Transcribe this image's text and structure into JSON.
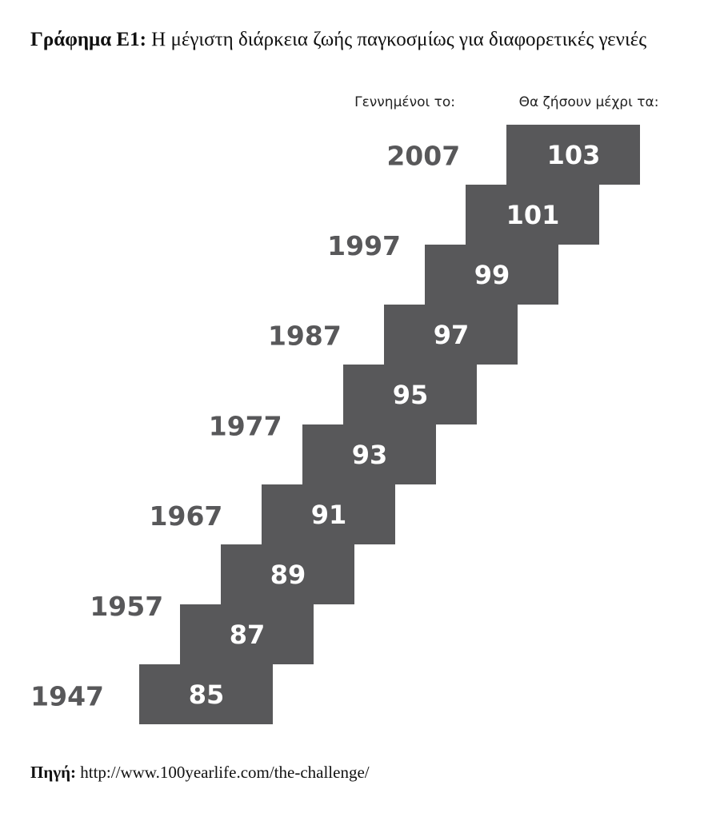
{
  "title": {
    "label": "Γράφημα Ε1:",
    "text": "Η μέγιστη διάρκεια ζωής παγκοσμίως για διαφορετικές γενιές"
  },
  "headers": {
    "born": "Γεννημένοι το:",
    "lives_until": "Θα ζήσουν μέχρι τα:"
  },
  "ages": [
    85,
    87,
    89,
    91,
    93,
    95,
    97,
    99,
    101,
    103
  ],
  "years": [
    "1947",
    "1957",
    "1967",
    "1977",
    "1987",
    "1997",
    "2007"
  ],
  "source": {
    "label": "Πηγή:",
    "url": "http://www.100yearlife.com/the-challenge/"
  }
}
